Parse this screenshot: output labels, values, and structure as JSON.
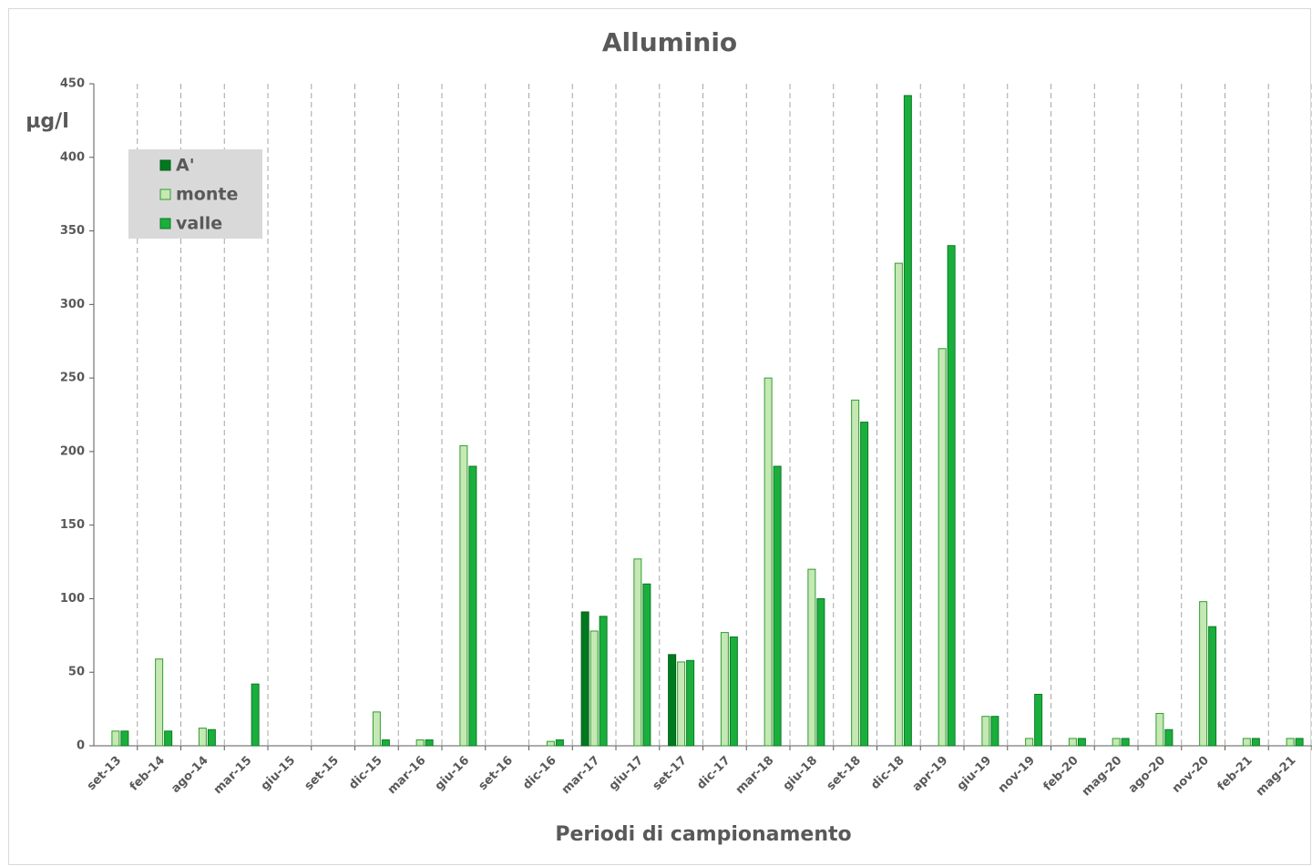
{
  "chart_data": {
    "type": "bar",
    "title": "Alluminio",
    "y_label": "µg/l",
    "x_label": "Periodi di campionamento",
    "categories": [
      "set-13",
      "feb-14",
      "ago-14",
      "mar-15",
      "giu-15",
      "set-15",
      "dic-15",
      "mar-16",
      "giu-16",
      "set-16",
      "dic-16",
      "mar-17",
      "giu-17",
      "set-17",
      "dic-17",
      "mar-18",
      "giu-18",
      "set-18",
      "dic-18",
      "apr-19",
      "giu-19",
      "nov-19",
      "feb-20",
      "mag-20",
      "ago-20",
      "nov-20",
      "feb-21",
      "mag-21"
    ],
    "series": [
      {
        "name": "A'",
        "color": "#007a1f",
        "values": [
          null,
          null,
          null,
          null,
          null,
          null,
          null,
          null,
          null,
          null,
          null,
          91,
          null,
          62,
          null,
          null,
          null,
          null,
          null,
          null,
          null,
          null,
          null,
          null,
          null,
          null,
          null,
          null
        ]
      },
      {
        "name": "monte",
        "color": "#c6e8b4",
        "values": [
          10,
          59,
          12,
          0,
          0,
          0,
          23,
          4,
          204,
          0,
          3,
          78,
          127,
          57,
          77,
          250,
          120,
          235,
          328,
          270,
          20,
          5,
          5,
          5,
          22,
          98,
          5,
          5
        ]
      },
      {
        "name": "valle",
        "color": "#1aaf3c",
        "values": [
          10,
          10,
          11,
          42,
          0,
          0,
          4,
          4,
          190,
          0,
          4,
          88,
          110,
          58,
          74,
          190,
          100,
          220,
          442,
          340,
          20,
          35,
          5,
          5,
          11,
          81,
          5,
          5
        ]
      }
    ],
    "ylim": [
      0,
      450
    ],
    "yticks": [
      0,
      50,
      100,
      150,
      200,
      250,
      300,
      350,
      400,
      450
    ],
    "legend": "upper left"
  }
}
